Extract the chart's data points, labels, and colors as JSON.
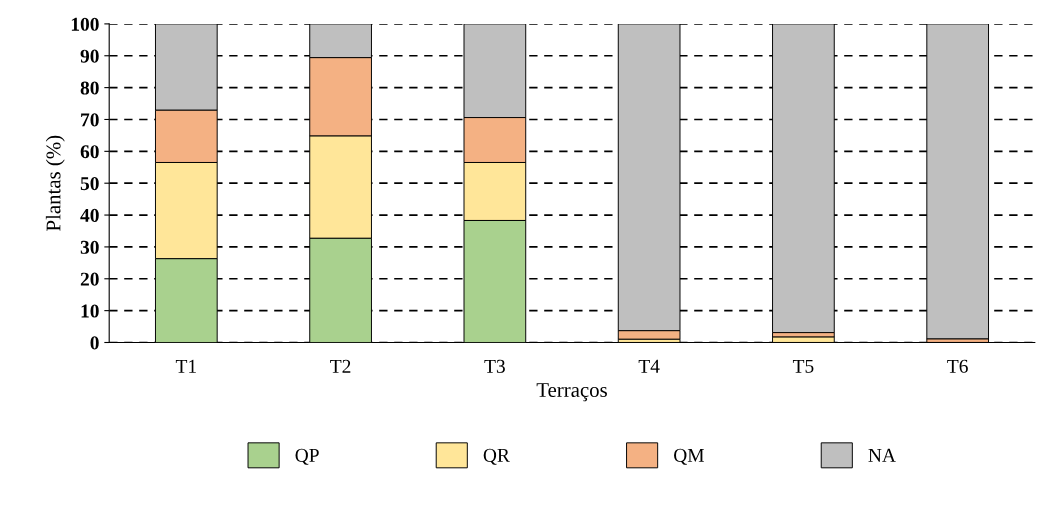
{
  "chart_data": {
    "type": "bar",
    "stacked": true,
    "xlabel": "Terraços",
    "ylabel": "Plantas (%)",
    "categories": [
      "T1",
      "T2",
      "T3",
      "T4",
      "T5",
      "T6"
    ],
    "series": [
      {
        "name": "QP",
        "color": "#a9d18e",
        "values": [
          26.3,
          32.7,
          38.3,
          0,
          0,
          0
        ]
      },
      {
        "name": "QR",
        "color": "#ffe699",
        "values": [
          30.2,
          32.1,
          18.2,
          1.0,
          1.7,
          0
        ]
      },
      {
        "name": "QM",
        "color": "#f4b183",
        "values": [
          16.4,
          24.6,
          14.1,
          2.7,
          1.4,
          1.1
        ]
      },
      {
        "name": "NA",
        "color": "#bfbfbf",
        "values": [
          27.1,
          10.6,
          29.4,
          96.3,
          96.9,
          98.9
        ]
      }
    ],
    "ylim": [
      0,
      100
    ],
    "yticks": [
      0,
      10,
      20,
      30,
      40,
      50,
      60,
      70,
      80,
      90,
      100
    ],
    "grid": "y",
    "legend": "bottom"
  }
}
